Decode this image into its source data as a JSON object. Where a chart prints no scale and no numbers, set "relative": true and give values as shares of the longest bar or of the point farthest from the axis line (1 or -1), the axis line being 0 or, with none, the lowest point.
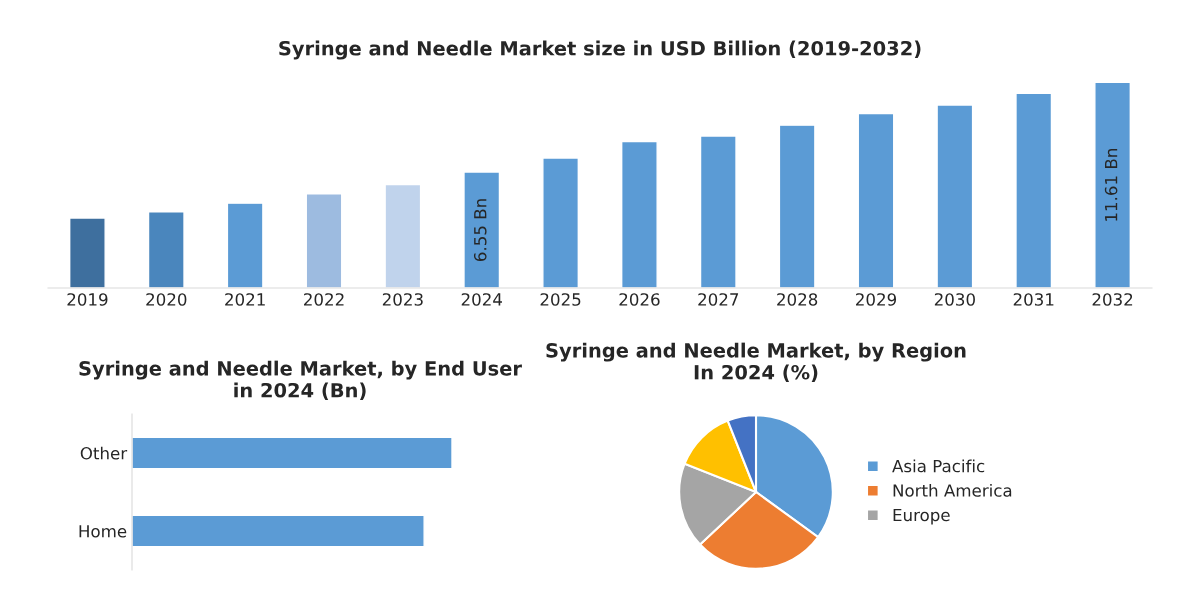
{
  "chart_data": [
    {
      "type": "bar",
      "title": "Syringe and Needle Market size in USD Billion (2019-2032)",
      "tick_labels": "x",
      "categories": [
        "2019",
        "2020",
        "2021",
        "2022",
        "2023",
        "2024",
        "2025",
        "2026",
        "2027",
        "2028",
        "2029",
        "2030",
        "2031",
        "2032"
      ],
      "values": [
        3.95,
        4.3,
        4.79,
        5.32,
        5.84,
        6.55,
        7.34,
        8.27,
        8.58,
        9.19,
        9.85,
        10.33,
        10.99,
        11.61
      ],
      "colors": [
        "#3e6f9e",
        "#4a86bd",
        "#5b9bd5",
        "#9dbbe0",
        "#c0d3ec",
        "#5b9bd5",
        "#5b9bd5",
        "#5b9bd5",
        "#5b9bd5",
        "#5b9bd5",
        "#5b9bd5",
        "#5b9bd5",
        "#5b9bd5",
        "#5b9bd5"
      ],
      "value_labels": [
        null,
        null,
        null,
        null,
        null,
        "6.55 Bn",
        null,
        null,
        null,
        null,
        null,
        null,
        null,
        "11.61 Bn"
      ]
    },
    {
      "type": "bar",
      "orientation": "horizontal",
      "title": "Syringe and Needle Market, by End User\nin 2024 (Bn)",
      "relative": true,
      "categories": [
        "Other",
        "Home"
      ],
      "values": [
        1,
        0.913
      ],
      "color": "#5b9bd5"
    },
    {
      "type": "pie",
      "title": "Syringe and Needle Market, by Region\nIn 2024 (%)",
      "categories": [
        "Asia Pacific",
        "North America",
        "Europe",
        null,
        null
      ],
      "values": [
        35,
        28,
        18,
        13,
        6
      ],
      "colors": [
        "#5b9bd5",
        "#ed7d31",
        "#a5a5a5",
        "#ffc000",
        "#4472c4"
      ],
      "legend": "right"
    }
  ]
}
